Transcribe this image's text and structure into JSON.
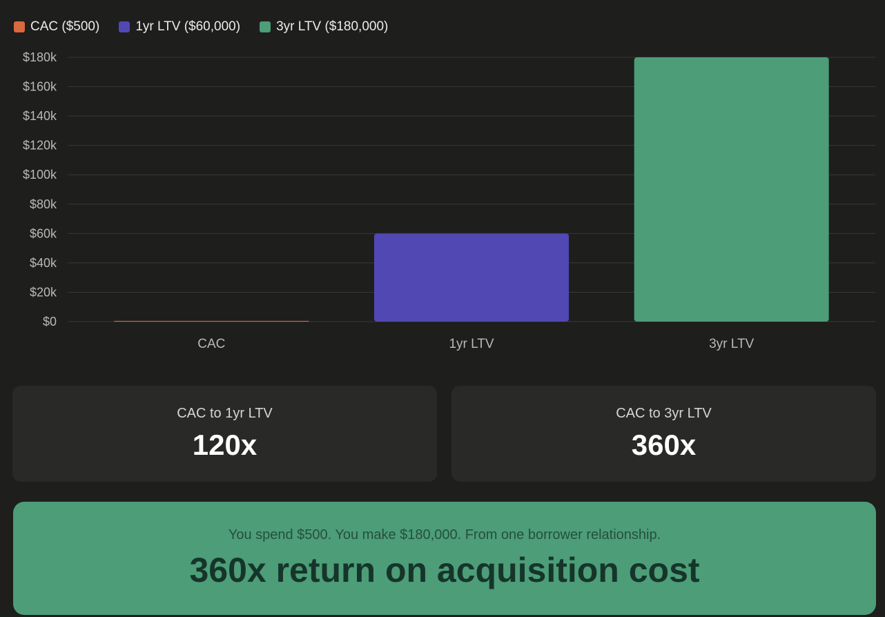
{
  "colors": {
    "cac": "#d9693e",
    "ltv1": "#5148b3",
    "ltv3": "#4c9d78",
    "background": "#1e1e1d",
    "card": "#292928",
    "grid": "#383836"
  },
  "legend": [
    {
      "label": "CAC ($500)",
      "color": "#d9693e"
    },
    {
      "label": "1yr LTV ($60,000)",
      "color": "#5148b3"
    },
    {
      "label": "3yr LTV ($180,000)",
      "color": "#4c9d78"
    }
  ],
  "chart_data": {
    "type": "bar",
    "categories": [
      "CAC",
      "1yr LTV",
      "3yr LTV"
    ],
    "values": [
      500,
      60000,
      180000
    ],
    "colors": [
      "#d9693e",
      "#5148b3",
      "#4c9d78"
    ],
    "ylim": [
      0,
      180000
    ],
    "yticks": [
      0,
      20000,
      40000,
      60000,
      80000,
      100000,
      120000,
      140000,
      160000,
      180000
    ],
    "ytick_labels": [
      "$0",
      "$20k",
      "$40k",
      "$60k",
      "$80k",
      "$100k",
      "$120k",
      "$140k",
      "$160k",
      "$180k"
    ],
    "grid": true,
    "legend_position": "top-left"
  },
  "cards": [
    {
      "label": "CAC to 1yr LTV",
      "value": "120x"
    },
    {
      "label": "CAC to 3yr LTV",
      "value": "360x"
    }
  ],
  "banner": {
    "subtitle": "You spend $500. You make $180,000. From one borrower relationship.",
    "headline": "360x return on acquisition cost"
  }
}
